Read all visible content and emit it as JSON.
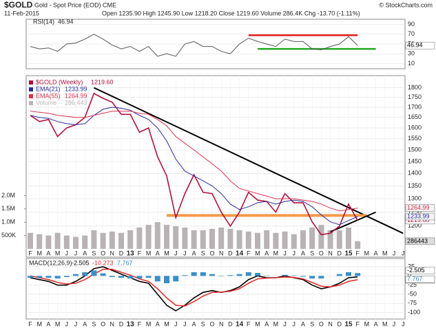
{
  "header": {
    "symbol": "$GOLD",
    "name": "Gold - Spot Price (EOD) CME",
    "date": "11-Feb-2015",
    "quote": "Open 1235.90 High 1245.90 Low 1218.20 Close 1219.60 Volume 286.4K Chg -13.70 (-1.11%)",
    "credit": "© StockCharts.com"
  },
  "chart_data": [
    {
      "type": "line",
      "panel": "rsi",
      "categories": [
        "F",
        "M",
        "A",
        "M",
        "J",
        "J",
        "A",
        "S",
        "O",
        "N",
        "D",
        "13",
        "F",
        "M",
        "A",
        "M",
        "J",
        "J",
        "A",
        "S",
        "O",
        "N",
        "D",
        "14",
        "F",
        "M",
        "A",
        "M",
        "J",
        "J",
        "A",
        "S",
        "O",
        "N",
        "D",
        "15",
        "F",
        "M",
        "A",
        "M",
        "J",
        "J"
      ],
      "ylim": [
        5,
        95
      ],
      "yticks": [
        10,
        30,
        50,
        70,
        90
      ],
      "series": [
        {
          "name": "RSI(14)",
          "color": "#555555",
          "values": [
            45,
            40,
            42,
            35,
            50,
            52,
            60,
            70,
            60,
            48,
            40,
            45,
            35,
            45,
            25,
            30,
            25,
            50,
            55,
            45,
            45,
            35,
            30,
            50,
            62,
            55,
            50,
            45,
            60,
            55,
            55,
            40,
            38,
            45,
            50,
            65,
            46.94,
            null,
            null,
            null,
            null,
            null
          ]
        }
      ],
      "ref_lines": [
        {
          "value": 68,
          "color": "#e31a1c",
          "from": 24,
          "to": 36
        },
        {
          "value": 40,
          "color": "#1fa81f",
          "from": 25,
          "to": 38
        }
      ]
    },
    {
      "type": "line",
      "panel": "price",
      "log": true,
      "categories": [
        "F",
        "M",
        "A",
        "M",
        "J",
        "J",
        "A",
        "S",
        "O",
        "N",
        "D",
        "13",
        "F",
        "M",
        "A",
        "M",
        "J",
        "J",
        "A",
        "S",
        "O",
        "N",
        "D",
        "14",
        "F",
        "M",
        "A",
        "M",
        "J",
        "J",
        "A",
        "S",
        "O",
        "N",
        "D",
        "15",
        "F",
        "M",
        "A",
        "M",
        "J",
        "J"
      ],
      "ylim": [
        1150,
        1850
      ],
      "yticks": [
        1200,
        1250,
        1300,
        1350,
        1400,
        1450,
        1500,
        1550,
        1600,
        1650,
        1700,
        1750,
        1800
      ],
      "y2lim": [
        0,
        2500000
      ],
      "y2ticks": [
        {
          "value": 500000,
          "label": "500K"
        },
        {
          "value": 1000000,
          "label": "1.0M"
        },
        {
          "value": 1500000,
          "label": "1.5M"
        },
        {
          "value": 2000000,
          "label": "2.0M"
        }
      ],
      "series": [
        {
          "name": "$GOLD (Weekly)",
          "color": "#b0103a",
          "last_label": "1219.60",
          "values": [
            1660,
            1630,
            1640,
            1560,
            1600,
            1615,
            1650,
            1770,
            1745,
            1725,
            1665,
            1665,
            1580,
            1600,
            1470,
            1390,
            1230,
            1320,
            1395,
            1325,
            1320,
            1250,
            1200,
            1250,
            1325,
            1295,
            1290,
            1250,
            1320,
            1285,
            1285,
            1215,
            1170,
            1175,
            1200,
            1280,
            1219.6,
            null,
            null,
            null,
            null,
            null
          ]
        },
        {
          "name": "EMA(21)",
          "color": "#2b2b9a",
          "last_label": "1233.99",
          "values": [
            1660,
            1650,
            1645,
            1630,
            1620,
            1615,
            1620,
            1660,
            1690,
            1700,
            1695,
            1685,
            1660,
            1640,
            1600,
            1540,
            1460,
            1410,
            1390,
            1370,
            1350,
            1320,
            1280,
            1260,
            1270,
            1285,
            1290,
            1280,
            1290,
            1295,
            1290,
            1270,
            1240,
            1215,
            1205,
            1220,
            1233.99,
            null,
            null,
            null,
            null,
            null
          ]
        },
        {
          "name": "EMA(55)",
          "color": "#d9304f",
          "last_label": "1264.99",
          "values": [
            1680,
            1675,
            1670,
            1660,
            1655,
            1650,
            1650,
            1660,
            1670,
            1680,
            1680,
            1680,
            1670,
            1665,
            1640,
            1610,
            1560,
            1530,
            1500,
            1470,
            1440,
            1410,
            1370,
            1340,
            1330,
            1320,
            1310,
            1300,
            1300,
            1300,
            1295,
            1290,
            1280,
            1265,
            1255,
            1260,
            1264.99,
            null,
            null,
            null,
            null,
            null
          ]
        },
        {
          "name": "Volume",
          "color": "#b9b3b5",
          "axis": "y2",
          "last_label": "286,443",
          "values": [
            600000,
            550000,
            500000,
            600000,
            500000,
            450000,
            500000,
            700000,
            600000,
            650000,
            600000,
            700000,
            800000,
            900000,
            1000000,
            900000,
            850000,
            800000,
            700000,
            700000,
            750000,
            800000,
            750000,
            700000,
            650000,
            600000,
            700000,
            600000,
            650000,
            550000,
            700000,
            800000,
            900000,
            700000,
            700000,
            800000,
            286443,
            null,
            null,
            null,
            null,
            null
          ]
        }
      ],
      "trendlines": [
        {
          "color": "#000000",
          "x": [
            7,
            41
          ],
          "y": [
            1800,
            1175
          ]
        },
        {
          "color": "#f59a4a",
          "x": [
            15,
            37
          ],
          "y": [
            1238,
            1238
          ]
        },
        {
          "color": "#000000",
          "x": [
            33,
            38
          ],
          "y": [
            1180,
            1250
          ]
        }
      ]
    },
    {
      "type": "line",
      "panel": "macd",
      "categories": [
        "F",
        "M",
        "A",
        "M",
        "J",
        "J",
        "A",
        "S",
        "O",
        "N",
        "D",
        "13",
        "F",
        "M",
        "A",
        "M",
        "J",
        "J",
        "A",
        "S",
        "O",
        "N",
        "D",
        "14",
        "F",
        "M",
        "A",
        "M",
        "J",
        "J",
        "A",
        "S",
        "O",
        "N",
        "D",
        "15",
        "F",
        "M",
        "A",
        "M",
        "J",
        "J"
      ],
      "ylim": [
        -110,
        40
      ],
      "yticks": [
        25,
        0,
        -25,
        -50,
        -75,
        -100
      ],
      "name": "MACD(12,26,9)",
      "series": [
        {
          "color": "#000000",
          "values": [
            -5,
            -10,
            -15,
            -25,
            -25,
            -15,
            0,
            20,
            25,
            15,
            5,
            -5,
            -15,
            -20,
            -50,
            -80,
            -95,
            -80,
            -60,
            -45,
            -40,
            -45,
            -40,
            -30,
            -10,
            0,
            -5,
            -5,
            0,
            -5,
            -10,
            -25,
            -35,
            -30,
            -20,
            -5,
            -2.505,
            null,
            null,
            null,
            null,
            null
          ]
        },
        {
          "color": "#e0302f",
          "values": [
            0,
            -5,
            -10,
            -18,
            -22,
            -20,
            -10,
            5,
            18,
            18,
            10,
            2,
            -8,
            -15,
            -35,
            -60,
            -80,
            -82,
            -70,
            -55,
            -45,
            -44,
            -42,
            -35,
            -20,
            -8,
            -6,
            -5,
            -3,
            -4,
            -8,
            -18,
            -28,
            -30,
            -25,
            -15,
            -10.273,
            null,
            null,
            null,
            null,
            null
          ]
        },
        {
          "color": "#3a8fc8",
          "kind": "histogram",
          "values": [
            -5,
            -5,
            -5,
            -7,
            -3,
            5,
            10,
            15,
            7,
            -3,
            -5,
            -7,
            -7,
            -5,
            -15,
            -20,
            -15,
            2,
            10,
            10,
            5,
            -1,
            2,
            5,
            10,
            8,
            1,
            0,
            3,
            1,
            -2,
            -7,
            -7,
            0,
            5,
            10,
            7.767,
            null,
            null,
            null,
            null,
            null
          ]
        }
      ]
    }
  ]
}
